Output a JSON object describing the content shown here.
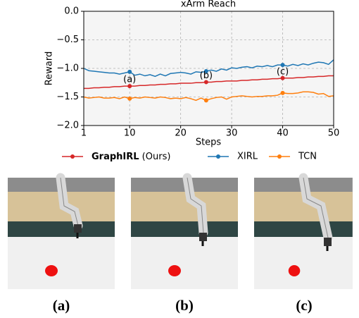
{
  "chart_data": {
    "type": "line",
    "title": "xArm Reach",
    "xlabel": "Steps",
    "ylabel": "Reward",
    "x": [
      1,
      2,
      3,
      4,
      5,
      6,
      7,
      8,
      9,
      10,
      11,
      12,
      13,
      14,
      15,
      16,
      17,
      18,
      19,
      20,
      21,
      22,
      23,
      24,
      25,
      26,
      27,
      28,
      29,
      30,
      31,
      32,
      33,
      34,
      35,
      36,
      37,
      38,
      39,
      40,
      41,
      42,
      43,
      44,
      45,
      46,
      47,
      48,
      49,
      50
    ],
    "series": [
      {
        "name": "GraphIRL (Ours)",
        "color": "#d62728",
        "values": [
          -1.35,
          -1.35,
          -1.34,
          -1.34,
          -1.33,
          -1.33,
          -1.32,
          -1.32,
          -1.31,
          -1.31,
          -1.31,
          -1.3,
          -1.3,
          -1.29,
          -1.29,
          -1.28,
          -1.28,
          -1.27,
          -1.27,
          -1.26,
          -1.26,
          -1.26,
          -1.25,
          -1.25,
          -1.24,
          -1.24,
          -1.23,
          -1.23,
          -1.22,
          -1.22,
          -1.22,
          -1.21,
          -1.21,
          -1.2,
          -1.2,
          -1.19,
          -1.19,
          -1.18,
          -1.18,
          -1.17,
          -1.17,
          -1.17,
          -1.16,
          -1.16,
          -1.15,
          -1.15,
          -1.14,
          -1.14,
          -1.13,
          -1.13
        ]
      },
      {
        "name": "XIRL",
        "color": "#1f77b4",
        "values": [
          -1.0,
          -1.04,
          -1.05,
          -1.06,
          -1.07,
          -1.08,
          -1.08,
          -1.1,
          -1.08,
          -1.06,
          -1.12,
          -1.1,
          -1.13,
          -1.11,
          -1.14,
          -1.1,
          -1.13,
          -1.09,
          -1.08,
          -1.07,
          -1.08,
          -1.1,
          -1.06,
          -1.07,
          -1.05,
          -1.03,
          -1.05,
          -1.01,
          -1.03,
          -0.99,
          -1.0,
          -0.98,
          -0.97,
          -0.99,
          -0.96,
          -0.97,
          -0.95,
          -0.97,
          -0.94,
          -0.94,
          -0.96,
          -0.93,
          -0.95,
          -0.92,
          -0.94,
          -0.91,
          -0.89,
          -0.9,
          -0.93,
          -0.85
        ]
      },
      {
        "name": "TCN",
        "color": "#ff7f0e",
        "values": [
          -1.5,
          -1.52,
          -1.51,
          -1.5,
          -1.52,
          -1.52,
          -1.51,
          -1.53,
          -1.5,
          -1.53,
          -1.51,
          -1.52,
          -1.5,
          -1.51,
          -1.52,
          -1.5,
          -1.51,
          -1.53,
          -1.52,
          -1.53,
          -1.51,
          -1.53,
          -1.56,
          -1.52,
          -1.56,
          -1.53,
          -1.51,
          -1.5,
          -1.54,
          -1.5,
          -1.49,
          -1.48,
          -1.49,
          -1.5,
          -1.49,
          -1.49,
          -1.48,
          -1.48,
          -1.47,
          -1.43,
          -1.44,
          -1.44,
          -1.43,
          -1.41,
          -1.41,
          -1.42,
          -1.45,
          -1.44,
          -1.49,
          -1.48
        ]
      }
    ],
    "annotations": [
      {
        "text": "(a)",
        "x": 10
      },
      {
        "text": "(b)",
        "x": 25
      },
      {
        "text": "(c)",
        "x": 40
      }
    ],
    "xlim": [
      1,
      50
    ],
    "xticks": [
      1,
      10,
      20,
      30,
      40,
      50
    ],
    "ylim": [
      -2.0,
      0.0
    ],
    "yticks": [
      {
        "value": -2.0,
        "label": "−2.0"
      },
      {
        "value": -1.5,
        "label": "−1.5"
      },
      {
        "value": -1.0,
        "label": "−1.0"
      },
      {
        "value": -0.5,
        "label": "−0.5"
      },
      {
        "value": 0.0,
        "label": "0.0"
      }
    ],
    "grid": true
  },
  "panels": [
    {
      "caption": "(a)"
    },
    {
      "caption": "(b)"
    },
    {
      "caption": "(c)"
    }
  ]
}
